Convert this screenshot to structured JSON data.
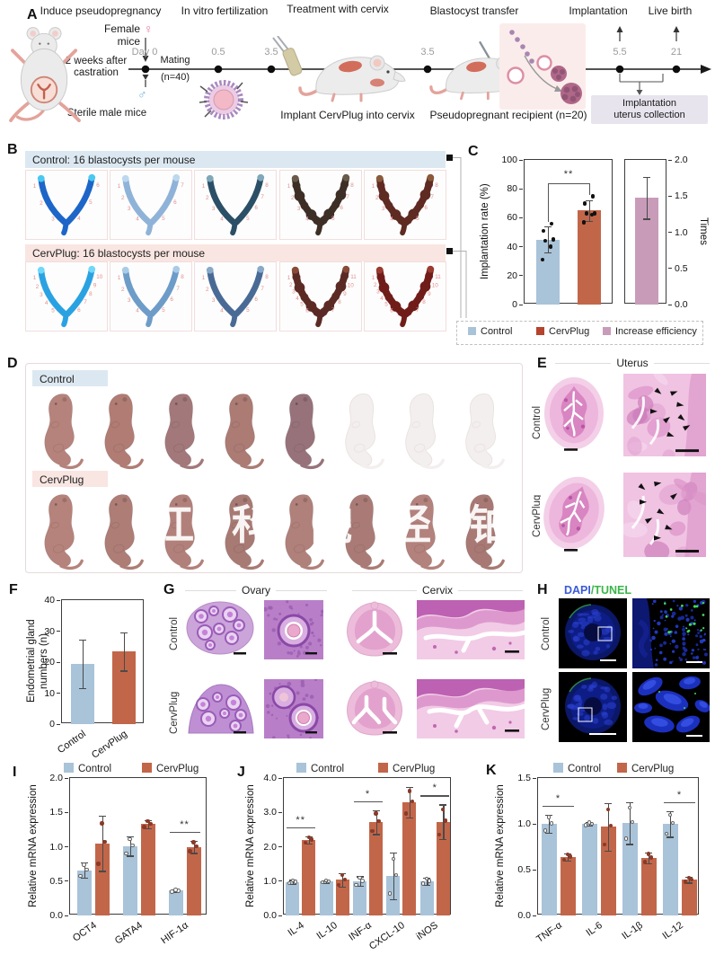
{
  "colors": {
    "control_bar": "#a9c3d9",
    "cervplug_bar": "#c2664a",
    "efficiency_bar": "#c89cb9",
    "control_header_bg": "#dce8f1",
    "cervplug_header_bg": "#f9e5e1",
    "dapi": "#3b5bd8",
    "tunel": "#3cb54a"
  },
  "panelA": {
    "label": "A",
    "step_titles": [
      "Induce pseudopregnancy",
      "In vitro fertilization",
      "Treatment with cervix",
      "Blastocyst transfer",
      "Implantation",
      "Live birth"
    ],
    "female_mice": "Female mice",
    "female_symbol": "♀",
    "male_symbol": "♂",
    "castration_line1": "2 weeks after",
    "castration_line2": "castration",
    "sterile_male": "Sterile male mice",
    "day0": "Day 0",
    "mating_line1": "Mating",
    "mating_line2": "(n=40)",
    "timepoints": [
      "0.5",
      "3.5",
      "3.5",
      "5.5",
      "21"
    ],
    "implant_caption": "Implant CervPlug into cervix",
    "recipient_caption": "Pseudopregnant recipient (n=20)",
    "collection_line1": "Implantation",
    "collection_line2": "uterus collection"
  },
  "panelB": {
    "label": "B",
    "groups": [
      {
        "header": "Control: 16 blastocysts per mouse",
        "header_bg": "#dce8f1",
        "specimens": [
          {
            "color": "#1d66c8",
            "tip": "#49c8f0",
            "beaded": false,
            "sites": 6
          },
          {
            "color": "#8fb3d8",
            "tip": "#bcd8ee",
            "beaded": false,
            "sites": 7
          },
          {
            "color": "#2b4f66",
            "tip": "#7fa8b8",
            "beaded": false,
            "sites": 8
          },
          {
            "color": "#3d2f26",
            "tip": "#6a5a4a",
            "beaded": true,
            "sites": 8
          },
          {
            "color": "#5e2a22",
            "tip": "#8a5a3a",
            "beaded": true,
            "sites": 8
          }
        ]
      },
      {
        "header": "CervPlug: 16 blastocysts per mouse",
        "header_bg": "#f9e5e1",
        "specimens": [
          {
            "color": "#2aa2e2",
            "tip": "#70d8f8",
            "beaded": false,
            "sites": 10
          },
          {
            "color": "#6d9cc8",
            "tip": "#a8cce8",
            "beaded": false,
            "sites": 8
          },
          {
            "color": "#4a6a96",
            "tip": "#88aac8",
            "beaded": false,
            "sites": 8
          },
          {
            "color": "#5c2a24",
            "tip": "#8a4a38",
            "beaded": true,
            "sites": 11
          },
          {
            "color": "#701d1a",
            "tip": "#9a3a30",
            "beaded": true,
            "sites": 11
          }
        ]
      }
    ]
  },
  "panelC": {
    "label": "C"
  },
  "panelD": {
    "label": "D",
    "rows": [
      {
        "header": "Control",
        "header_bg": "#dce8f1",
        "pups": [
          "#b5837b",
          "#b07c74",
          "#a2787a",
          "#ab7b74",
          "#97727a",
          "ghost",
          "ghost",
          "ghost"
        ]
      },
      {
        "header": "CervPlug",
        "header_bg": "#f9e5e1",
        "pups": [
          "#b5837b",
          "#ad7d76",
          "#b2807a",
          "#a87a74",
          "#b0807a",
          "#aa7b76",
          "#b3827c",
          "#a87974"
        ]
      }
    ],
    "watermark": "江科院经铂"
  },
  "panelE": {
    "label": "E",
    "title": "Uterus",
    "rows": [
      "Control",
      "CervPlug"
    ]
  },
  "panelF": {
    "label": "F"
  },
  "panelG": {
    "label": "G",
    "titles": [
      "Ovary",
      "Cervix"
    ],
    "rows": [
      "Control",
      "CervPlug"
    ]
  },
  "panelH": {
    "label": "H",
    "title_dapi": "DAPI",
    "title_slash": "/",
    "title_tunel": "TUNEL",
    "rows": [
      "Control",
      "CervPlug"
    ]
  },
  "panelI": {
    "label": "I"
  },
  "panelJ": {
    "label": "J"
  },
  "panelK": {
    "label": "K"
  },
  "chart_data": [
    {
      "id": "C",
      "type": "bar",
      "ylabel": "Implantation rate (%)",
      "ylabel_right": "Times",
      "ylim": [
        0,
        100
      ],
      "yticks": [
        "0",
        "20",
        "40",
        "60",
        "80",
        "100"
      ],
      "ylim_right": [
        0,
        2.0
      ],
      "yticks_right": [
        "0.0",
        "0.5",
        "1.0",
        "1.5",
        "2.0"
      ],
      "categories": [
        "Control",
        "CervPlug"
      ],
      "values": [
        45,
        65
      ],
      "errors": [
        9,
        7
      ],
      "points": [
        [
          31,
          40,
          44,
          45,
          51,
          56
        ],
        [
          57,
          62,
          63,
          63,
          70,
          75
        ]
      ],
      "colors": [
        "#a9c3d9",
        "#c2664a"
      ],
      "right_bar": {
        "label": "Increase efficiency",
        "value": 1.48,
        "error": 0.29,
        "color": "#c89cb9"
      },
      "significance": "**",
      "legend": [
        "Control",
        "CervPlug",
        "Increase efficiency"
      ],
      "legend_colors": [
        "#a9c3d9",
        "#b5432e",
        "#c89cb9"
      ]
    },
    {
      "id": "F",
      "type": "bar",
      "ylabel": "Endometrial gland numbers (n)",
      "ylim": [
        0,
        40
      ],
      "yticks": [
        "0",
        "10",
        "20",
        "30",
        "40"
      ],
      "categories": [
        "Control",
        "CervPlug"
      ],
      "values": [
        19.5,
        23.5
      ],
      "errors": [
        7.8,
        6.2
      ],
      "colors": [
        "#a9c3d9",
        "#c2664a"
      ]
    },
    {
      "id": "I",
      "type": "grouped-bar",
      "ylabel": "Relative mRNA expression",
      "ylim": [
        0,
        2.0
      ],
      "yticks": [
        "0.0",
        "0.5",
        "1.0",
        "1.5",
        "2.0"
      ],
      "categories": [
        "OCT4",
        "GATA4",
        "HIF-1α"
      ],
      "series": [
        {
          "name": "Control",
          "color": "#a9c3d9",
          "values": [
            0.66,
            1.01,
            0.36
          ],
          "errors": [
            0.11,
            0.14,
            0.02
          ]
        },
        {
          "name": "CervPlug",
          "color": "#c2664a",
          "values": [
            1.05,
            1.33,
            1.0
          ],
          "errors": [
            0.4,
            0.06,
            0.09
          ]
        }
      ],
      "significance": [
        {
          "category": "HIF-1α",
          "label": "**"
        }
      ]
    },
    {
      "id": "J",
      "type": "grouped-bar",
      "ylabel": "Relative mRNA expression",
      "ylim": [
        0,
        4.0
      ],
      "yticks": [
        "0.0",
        "1.0",
        "2.0",
        "3.0",
        "4.0"
      ],
      "categories": [
        "IL-4",
        "IL-10",
        "INF-α",
        "CXCL-10",
        "iNOS"
      ],
      "series": [
        {
          "name": "Control",
          "color": "#a9c3d9",
          "values": [
            0.98,
            0.99,
            1.0,
            1.15,
            1.0
          ],
          "errors": [
            0.06,
            0.04,
            0.14,
            0.68,
            0.1
          ]
        },
        {
          "name": "CervPlug",
          "color": "#c2664a",
          "values": [
            2.2,
            1.04,
            2.72,
            3.3,
            2.73
          ],
          "errors": [
            0.1,
            0.2,
            0.35,
            0.45,
            0.5
          ]
        }
      ],
      "significance": [
        {
          "category": "IL-4",
          "label": "**"
        },
        {
          "category": "INF-α",
          "label": "*"
        },
        {
          "category": "iNOS",
          "label": "*"
        }
      ]
    },
    {
      "id": "K",
      "type": "grouped-bar",
      "ylabel": "Relative mRNA expression",
      "ylim": [
        0,
        1.5
      ],
      "yticks": [
        "0.0",
        "0.5",
        "1.0",
        "1.5"
      ],
      "categories": [
        "TNF-α",
        "IL-6",
        "IL-1β",
        "IL-12"
      ],
      "series": [
        {
          "name": "Control",
          "color": "#a9c3d9",
          "values": [
            1.0,
            1.0,
            1.01,
            1.0
          ],
          "errors": [
            0.1,
            0.02,
            0.23,
            0.14
          ]
        },
        {
          "name": "CervPlug",
          "color": "#c2664a",
          "values": [
            0.64,
            0.97,
            0.63,
            0.39
          ],
          "errors": [
            0.04,
            0.26,
            0.06,
            0.03
          ]
        }
      ],
      "significance": [
        {
          "category": "TNF-α",
          "label": "*"
        },
        {
          "category": "IL-12",
          "label": "*"
        }
      ]
    }
  ]
}
